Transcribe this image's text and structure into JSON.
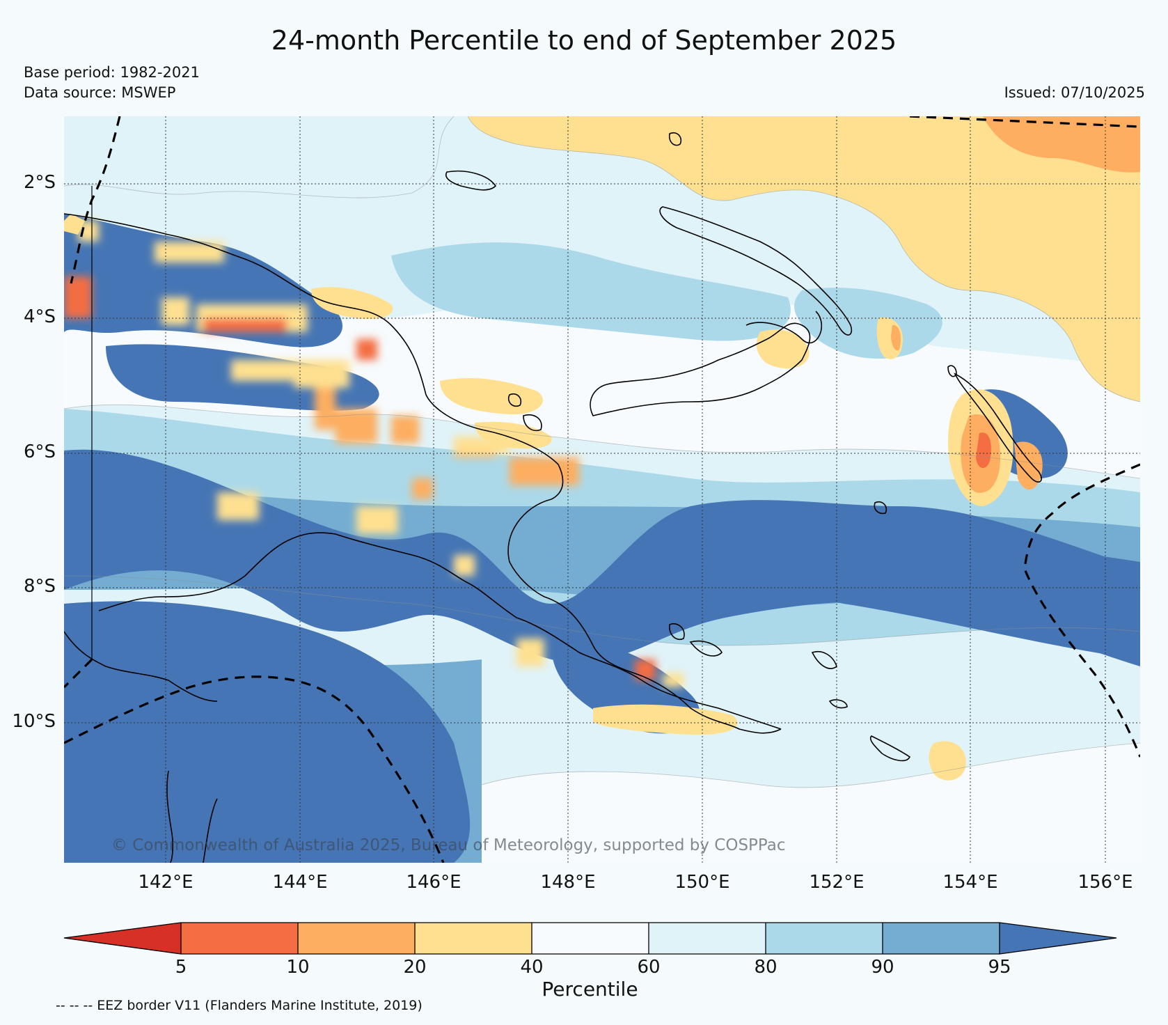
{
  "header": {
    "title": "24-month Percentile to end of September 2025",
    "base_period": "Base period: 1982-2021",
    "data_source": "Data source: MSWEP",
    "issued": "Issued: 07/10/2025"
  },
  "map": {
    "latitude_labels": [
      "2°S",
      "4°S",
      "6°S",
      "8°S",
      "10°S"
    ],
    "longitude_labels": [
      "142°E",
      "144°E",
      "146°E",
      "148°E",
      "150°E",
      "152°E",
      "154°E",
      "156°E"
    ],
    "copyright": "© Commonwealth of Australia 2025, Bureau of Meteorology, supported by COSPPac",
    "colors": {
      "below_5": "#d73027",
      "p5_10": "#f46d43",
      "p10_20": "#fdae61",
      "p20_40": "#fee090",
      "p40_60": "#f7fbfd",
      "p60_80": "#e0f3f8",
      "p80_90": "#abd9e9",
      "p90_95": "#74add1",
      "above_95": "#4575b4"
    }
  },
  "colorbar": {
    "ticks": [
      "5",
      "10",
      "20",
      "40",
      "60",
      "80",
      "90",
      "95"
    ],
    "label": "Percentile",
    "colors": [
      "#d73027",
      "#f46d43",
      "#fdae61",
      "#fee090",
      "#f7fbfd",
      "#e0f3f8",
      "#abd9e9",
      "#74add1",
      "#4575b4"
    ]
  },
  "footer": {
    "eez_note": "-- -- -- EEZ border V11 (Flanders Marine Institute, 2019)"
  }
}
